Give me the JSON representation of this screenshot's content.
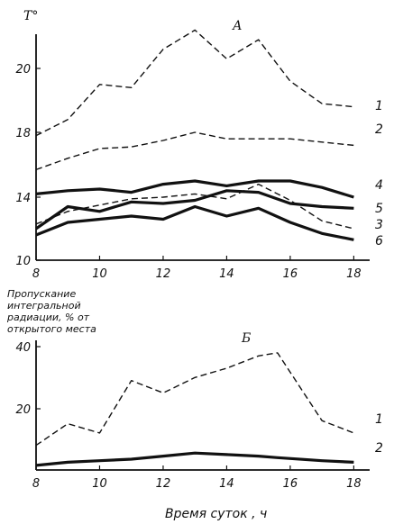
{
  "chart_data": [
    {
      "type": "line",
      "panel_label": "А",
      "ylabel": "Т°",
      "x": [
        8,
        9,
        10,
        11,
        12,
        13,
        14,
        15,
        16,
        17,
        18
      ],
      "xticks": [
        "8",
        "10",
        "12",
        "14",
        "16",
        "18"
      ],
      "yticks": [
        "10",
        "14",
        "18",
        "20"
      ],
      "ylim": [
        10,
        23
      ],
      "xlim": [
        8,
        18.5
      ],
      "series": [
        {
          "name": "1",
          "style": "dashed",
          "values": [
            17.8,
            18.4,
            19.5,
            19.4,
            20.6,
            21.2,
            20.3,
            20.9,
            19.6,
            18.9,
            18.8
          ]
        },
        {
          "name": "2",
          "style": "dashed",
          "values": [
            15.7,
            16.4,
            17.0,
            17.1,
            17.5,
            18.0,
            17.6,
            17.6,
            17.6,
            17.4,
            17.2
          ]
        },
        {
          "name": "4",
          "style": "thick",
          "values": [
            14.2,
            14.4,
            14.5,
            14.3,
            14.8,
            15.0,
            14.7,
            15.0,
            15.0,
            14.6,
            14.0
          ]
        },
        {
          "name": "5",
          "style": "thick",
          "values": [
            12.0,
            13.4,
            13.1,
            13.7,
            13.6,
            13.8,
            14.4,
            14.3,
            13.6,
            13.4,
            13.3
          ]
        },
        {
          "name": "3",
          "style": "dashed",
          "values": [
            12.3,
            13.1,
            13.5,
            13.9,
            14.0,
            14.2,
            13.9,
            14.8,
            13.8,
            12.5,
            12.0
          ]
        },
        {
          "name": "6",
          "style": "thick",
          "values": [
            11.6,
            12.4,
            12.6,
            12.8,
            12.6,
            13.4,
            12.8,
            13.3,
            12.4,
            11.7,
            11.3
          ]
        }
      ]
    },
    {
      "type": "line",
      "panel_label": "Б",
      "ylabel": "Пропускание интегральной радиации, % от открытого места",
      "xlabel": "Время суток , ч",
      "x": [
        8,
        9,
        10,
        11,
        12,
        13,
        14,
        15,
        15.6,
        17,
        18
      ],
      "xticks": [
        "8",
        "10",
        "12",
        "14",
        "16",
        "18"
      ],
      "yticks": [
        "20",
        "40"
      ],
      "ylim": [
        0,
        42
      ],
      "xlim": [
        8,
        18.5
      ],
      "series": [
        {
          "name": "1",
          "style": "dashed",
          "values": [
            8,
            15,
            12,
            29,
            25,
            30,
            33,
            37,
            38,
            16,
            12
          ]
        },
        {
          "name": "2",
          "style": "thick",
          "values": [
            1.5,
            2.5,
            3.0,
            3.5,
            4.5,
            5.5,
            5.0,
            4.5,
            4.0,
            3.0,
            2.5
          ]
        }
      ]
    }
  ]
}
